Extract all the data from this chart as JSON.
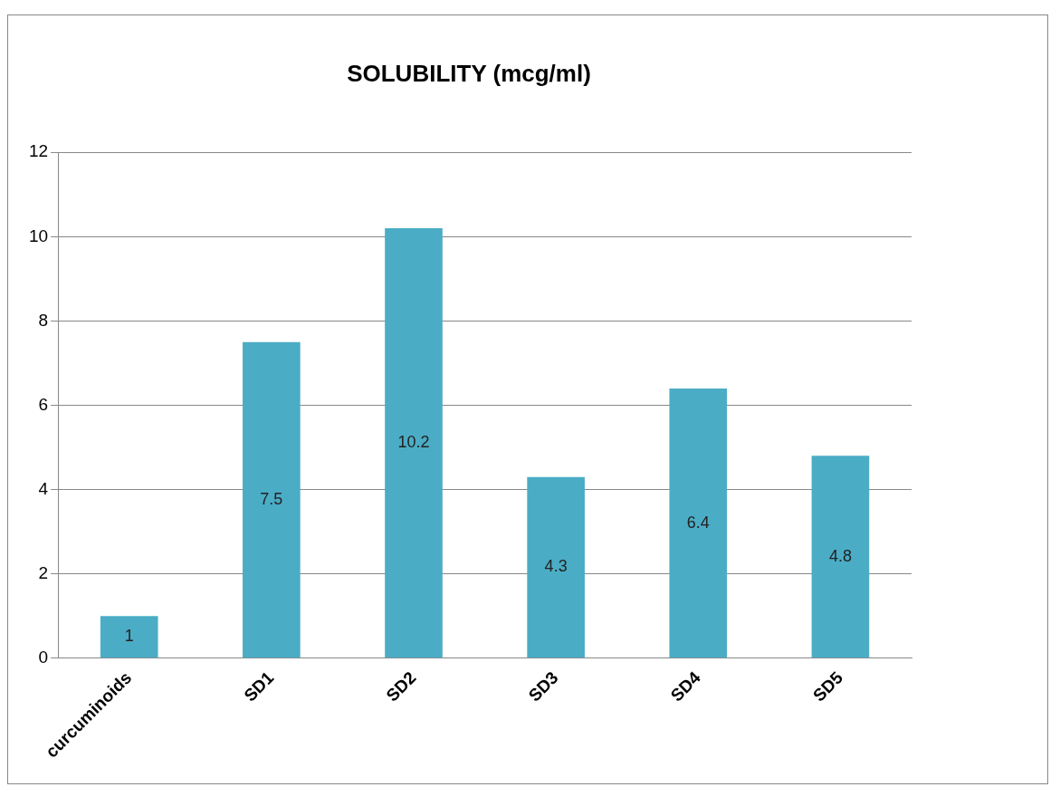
{
  "chart_data": {
    "type": "bar",
    "title": "SOLUBILITY (mcg/ml)",
    "categories": [
      "curcuminoids",
      "SD1",
      "SD2",
      "SD3",
      "SD4",
      "SD5"
    ],
    "values": [
      1,
      7.5,
      10.2,
      4.3,
      6.4,
      4.8
    ],
    "color": "#4bacc6",
    "ylim": [
      0,
      12
    ],
    "yticks": [
      0,
      2,
      4,
      6,
      8,
      10,
      12
    ],
    "grid": "y",
    "data_labels": true
  }
}
